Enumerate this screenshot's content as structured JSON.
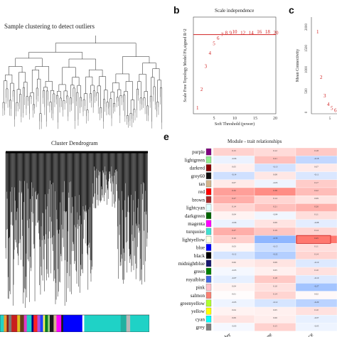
{
  "panel_a": {
    "title": "Sample clustering to detect outliers",
    "dendrogram_title": "Cluster Dendrogram"
  },
  "panel_b": {
    "letter": "b",
    "title": "Scale independence",
    "xlabel": "Soft Threshold (power)",
    "ylabel": "Scale Free Topology Model Fit,signed R^2",
    "x_ticks": [
      "5",
      "10",
      "15",
      "20"
    ]
  },
  "panel_c": {
    "letter": "c",
    "ylabel": "Mean Connectivity",
    "y_ticks": [
      "2000",
      "1500",
      "1000",
      "500",
      "0"
    ],
    "x_tick_visible": "5"
  },
  "panel_e": {
    "letter": "e",
    "title": "Module - trait relationships",
    "modules": [
      "purple",
      "lightgreen",
      "darkred",
      "grey60",
      "tan",
      "red",
      "brown",
      "lightcyan",
      "darkgreen",
      "magenta",
      "turquoise",
      "lightyellow",
      "blue",
      "black",
      "midnightblue",
      "green",
      "royalblue",
      "pink",
      "salmon",
      "greenyellow",
      "yellow",
      "cyan",
      "grey"
    ],
    "traits": [
      "Gender",
      "Age",
      "Race"
    ]
  },
  "chart_data": [
    {
      "type": "scatter",
      "title": "Scale independence",
      "xlabel": "Soft Threshold (power)",
      "ylabel": "Scale Free Topology Model Fit,signed R^2",
      "xlim": [
        0,
        20
      ],
      "cutoff_line": 0.85,
      "points": [
        {
          "x": 1,
          "y": 0.05
        },
        {
          "x": 2,
          "y": 0.26
        },
        {
          "x": 3,
          "y": 0.52
        },
        {
          "x": 4,
          "y": 0.67
        },
        {
          "x": 5,
          "y": 0.78
        },
        {
          "x": 6,
          "y": 0.84
        },
        {
          "x": 7,
          "y": 0.88
        },
        {
          "x": 8,
          "y": 0.9
        },
        {
          "x": 9,
          "y": 0.9
        },
        {
          "x": 10,
          "y": 0.91
        },
        {
          "x": 12,
          "y": 0.9
        },
        {
          "x": 14,
          "y": 0.9
        },
        {
          "x": 16,
          "y": 0.91
        },
        {
          "x": 18,
          "y": 0.91
        },
        {
          "x": 20,
          "y": 0.9
        }
      ]
    },
    {
      "type": "scatter",
      "ylabel": "Mean Connectivity",
      "ylim": [
        0,
        2000
      ],
      "points": [
        {
          "x": 1,
          "y": 1850
        },
        {
          "x": 2,
          "y": 800
        },
        {
          "x": 3,
          "y": 380
        },
        {
          "x": 4,
          "y": 180
        },
        {
          "x": 5,
          "y": 90
        },
        {
          "x": 6,
          "y": 45
        }
      ]
    },
    {
      "type": "heatmap",
      "title": "Module - trait relationships",
      "rows": [
        "purple",
        "lightgreen",
        "darkred",
        "grey60",
        "tan",
        "red",
        "brown",
        "lightcyan",
        "darkgreen",
        "magenta",
        "turquoise",
        "lightyellow",
        "blue",
        "black",
        "midnightblue",
        "green",
        "royalblue",
        "pink",
        "salmon",
        "greenyellow",
        "yellow",
        "cyan",
        "grey"
      ],
      "columns": [
        "Gender",
        "Age",
        "Race"
      ],
      "values": [
        [
          0.15,
          0.12,
          0.18
        ],
        [
          -0.06,
          0.21,
          -0.18
        ],
        [
          0.05,
          -0.13,
          0.07
        ],
        [
          -0.14,
          0.08,
          -0.11
        ],
        [
          0.07,
          -0.05,
          0.17
        ],
        [
          0.32,
          0.38,
          0.22
        ],
        [
          0.27,
          0.14,
          0.09
        ],
        [
          0.14,
          0.21,
          0.26
        ],
        [
          0.04,
          -0.04,
          0.11
        ],
        [
          -0.06,
          0.09,
          -0.08
        ],
        [
          0.27,
          0.19,
          0.14
        ],
        [
          0.16,
          -0.33,
          0.45
        ],
        [
          0.03,
          -0.15,
          0.11
        ],
        [
          -0.12,
          -0.22,
          0.14
        ],
        [
          0.06,
          0.09,
          -0.1
        ],
        [
          -0.03,
          0.05,
          0.1
        ],
        [
          -0.07,
          0.18,
          -0.1
        ],
        [
          0.04,
          0.1,
          -0.27
        ],
        [
          0.01,
          0.14,
          0.02
        ],
        [
          -0.05,
          -0.12,
          -0.2
        ],
        [
          0.04,
          0.05,
          0.1
        ],
        [
          0.09,
          0.06,
          -0.07
        ],
        [
          -0.03,
          0.15,
          -0.05
        ]
      ]
    }
  ]
}
